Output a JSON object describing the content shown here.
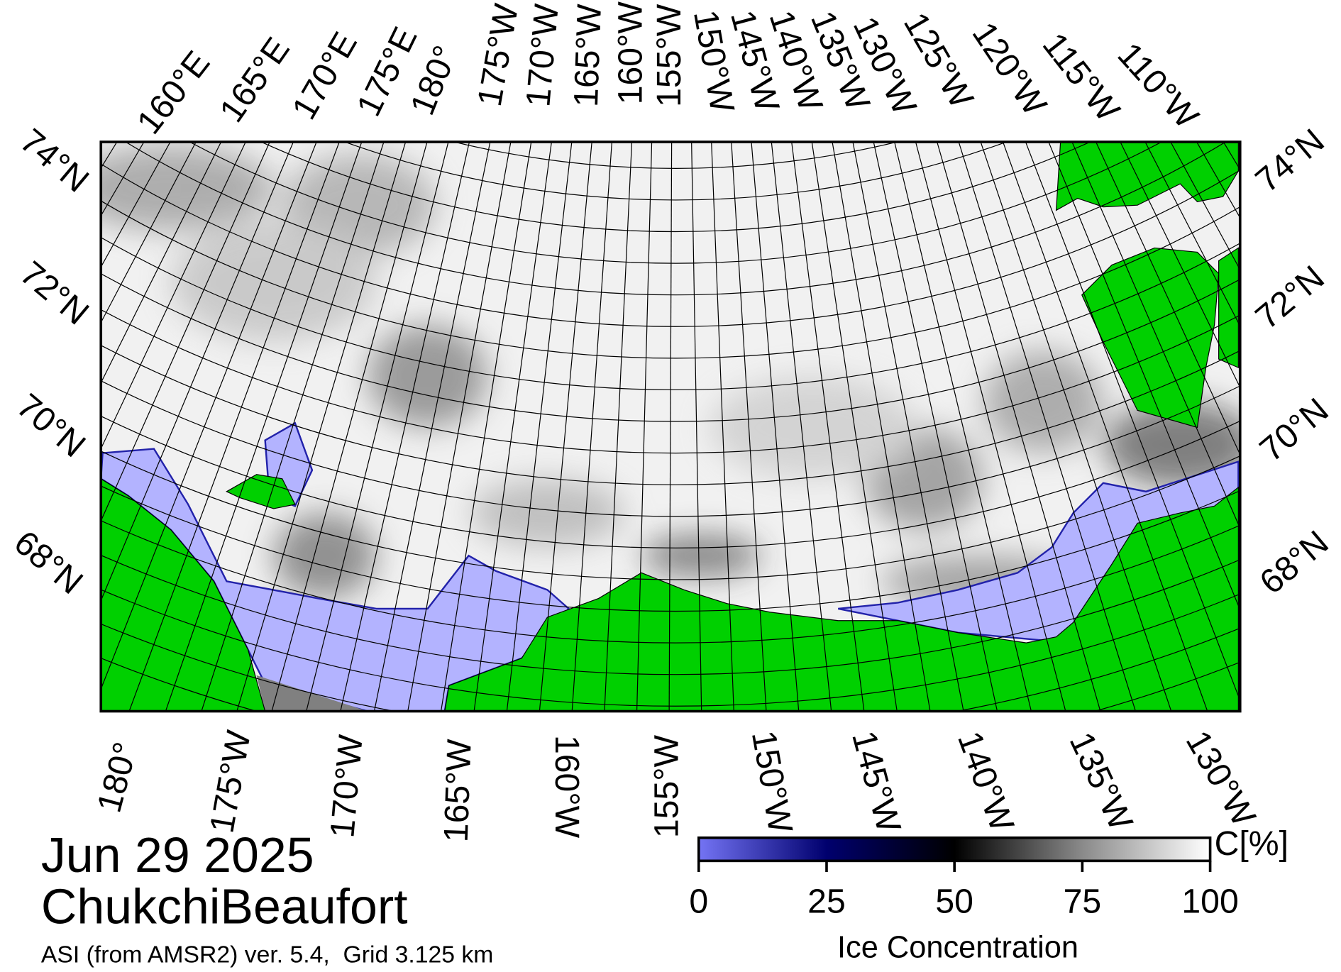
{
  "title": "Jun 29 2025",
  "region": "ChukchiBeaufort",
  "source": "ASI (from AMSR2) ver. 5.4,  Grid 3.125 km",
  "map": {
    "top_labels": [
      "160°E",
      "165°E",
      "170°E",
      "175°E",
      "180°",
      "175°W",
      "170°W",
      "165°W",
      "160°W",
      "155°W",
      "150°W",
      "145°W",
      "140°W",
      "135°W",
      "130°W",
      "125°W",
      "120°W",
      "115°W",
      "110°W"
    ],
    "bottom_labels": [
      "180°",
      "175°W",
      "170°W",
      "165°W",
      "160°W",
      "155°W",
      "150°W",
      "145°W",
      "140°W",
      "135°W",
      "130°W"
    ],
    "left_labels": [
      "74°N",
      "72°N",
      "70°N",
      "68°N"
    ],
    "right_labels": [
      "74°N",
      "72°N",
      "70°N",
      "68°N"
    ]
  },
  "colorbar": {
    "label": "Ice Concentration",
    "unit": "C[%]",
    "lim": [
      0,
      100
    ],
    "ticks": [
      0,
      25,
      50,
      75,
      100
    ]
  }
}
